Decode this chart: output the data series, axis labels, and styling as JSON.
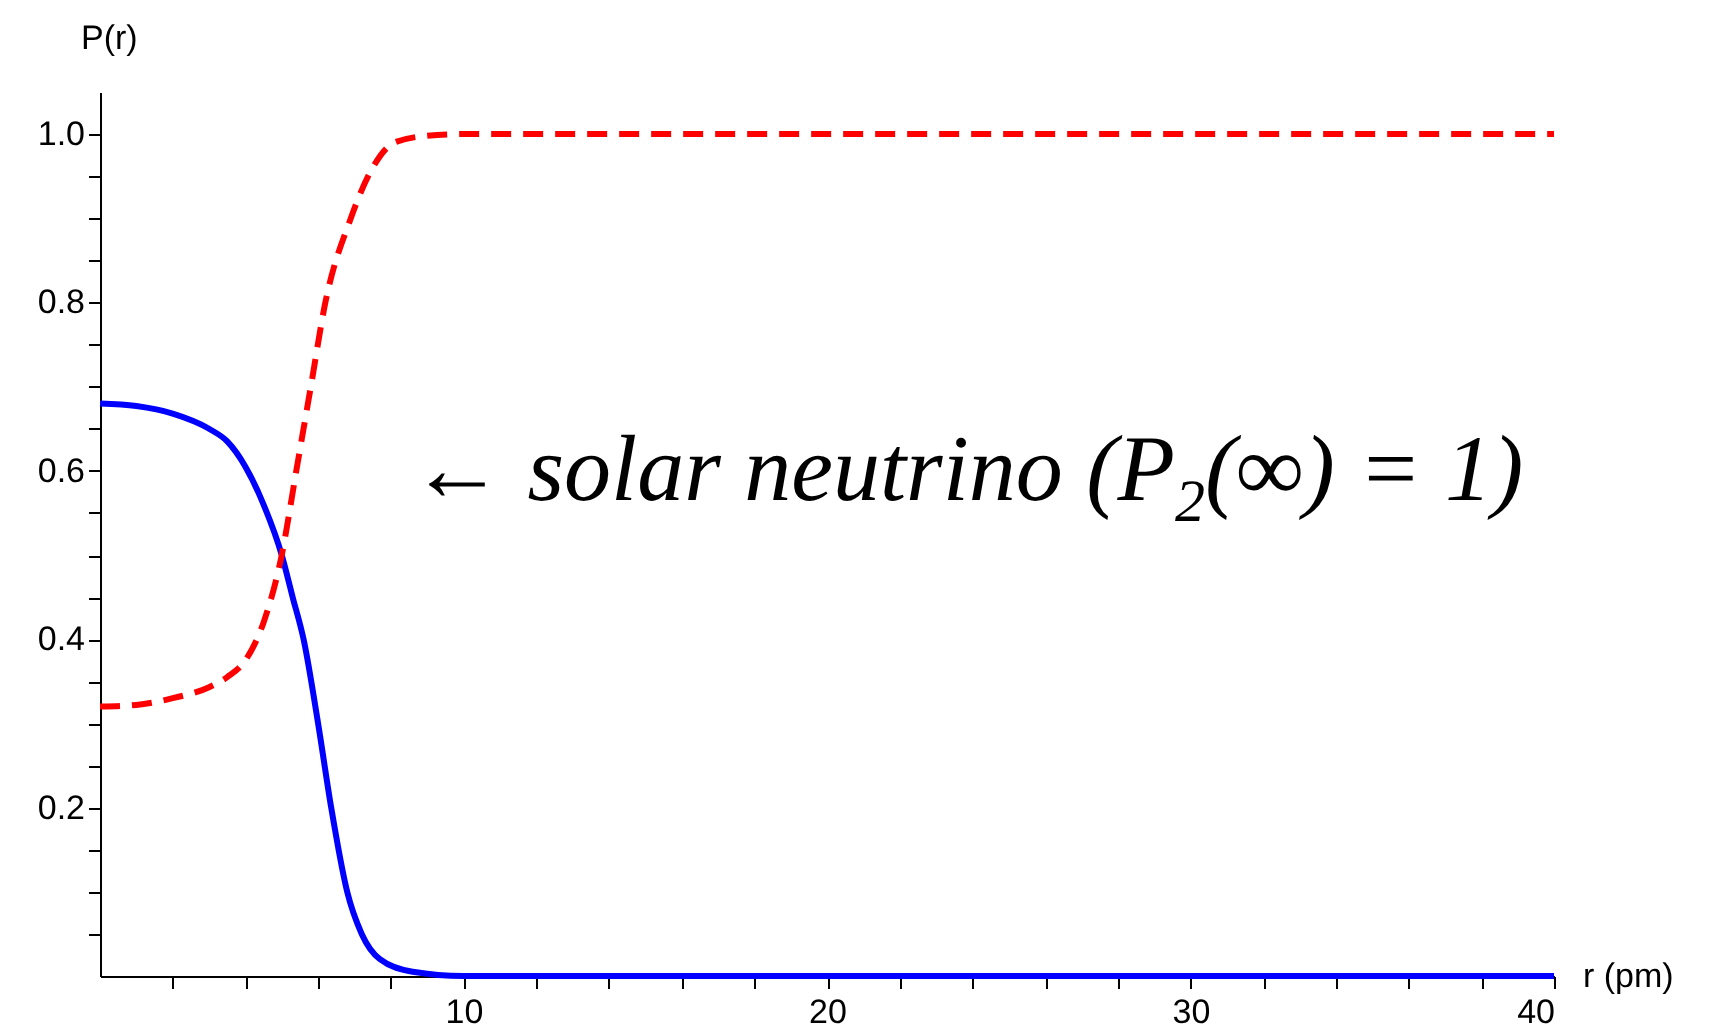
{
  "chart_data": {
    "type": "line",
    "xlabel": "r (pm)",
    "ylabel": "P(r)",
    "xlim": [
      0,
      40
    ],
    "ylim": [
      0,
      1.05
    ],
    "xticks": [
      {
        "value": 2,
        "label": null
      },
      {
        "value": 4,
        "label": null
      },
      {
        "value": 6,
        "label": null
      },
      {
        "value": 8,
        "label": null
      },
      10,
      {
        "value": 12,
        "label": null
      },
      {
        "value": 14,
        "label": null
      },
      {
        "value": 16,
        "label": null
      },
      {
        "value": 18,
        "label": null
      },
      20,
      {
        "value": 22,
        "label": null
      },
      {
        "value": 24,
        "label": null
      },
      {
        "value": 26,
        "label": null
      },
      {
        "value": 28,
        "label": null
      },
      30,
      {
        "value": 32,
        "label": null
      },
      {
        "value": 34,
        "label": null
      },
      {
        "value": 36,
        "label": null
      },
      {
        "value": 38,
        "label": null
      },
      40
    ],
    "yticks": [
      {
        "value": 0.05,
        "label": null
      },
      {
        "value": 0.1,
        "label": null
      },
      {
        "value": 0.15,
        "label": null
      },
      0.2,
      {
        "value": 0.25,
        "label": null
      },
      {
        "value": 0.3,
        "label": null
      },
      {
        "value": 0.35,
        "label": null
      },
      0.4,
      {
        "value": 0.45,
        "label": null
      },
      {
        "value": 0.5,
        "label": null
      },
      {
        "value": 0.55,
        "label": null
      },
      0.6,
      {
        "value": 0.65,
        "label": null
      },
      {
        "value": 0.7,
        "label": null
      },
      {
        "value": 0.75,
        "label": null
      },
      0.8,
      {
        "value": 0.85,
        "label": null
      },
      {
        "value": 0.9,
        "label": null
      },
      {
        "value": 0.95,
        "label": null
      },
      {
        "value": 1,
        "label": "1.0"
      }
    ],
    "grid": false,
    "legend": false,
    "annotations": [
      "← solar neutrino (P$_{2}$(∞) = 1)"
    ],
    "series": [
      {
        "color": "#0000ff",
        "line_style": "solid",
        "x": [
          0,
          1,
          2,
          3,
          3.5,
          4,
          4.5,
          5,
          5.3,
          5.6,
          6,
          6.36,
          6.8,
          7.2,
          7.7,
          8.6,
          10,
          40
        ],
        "values": [
          0.68,
          0.677,
          0.668,
          0.65,
          0.635,
          0.605,
          0.56,
          0.5,
          0.45,
          0.4,
          0.3,
          0.2,
          0.1,
          0.05,
          0.02,
          0.005,
          0,
          0
        ]
      },
      {
        "color": "#ff0000",
        "line_style": "dashed",
        "x": [
          0,
          1,
          2,
          3,
          3.5,
          4,
          4.5,
          5,
          5.4,
          5.8,
          6.2,
          6.9,
          7.5,
          8.1,
          9,
          10,
          40
        ],
        "values": [
          0.32,
          0.322,
          0.33,
          0.343,
          0.355,
          0.375,
          0.42,
          0.5,
          0.6,
          0.7,
          0.8,
          0.9,
          0.96,
          0.99,
          0.998,
          1,
          1
        ]
      }
    ]
  }
}
